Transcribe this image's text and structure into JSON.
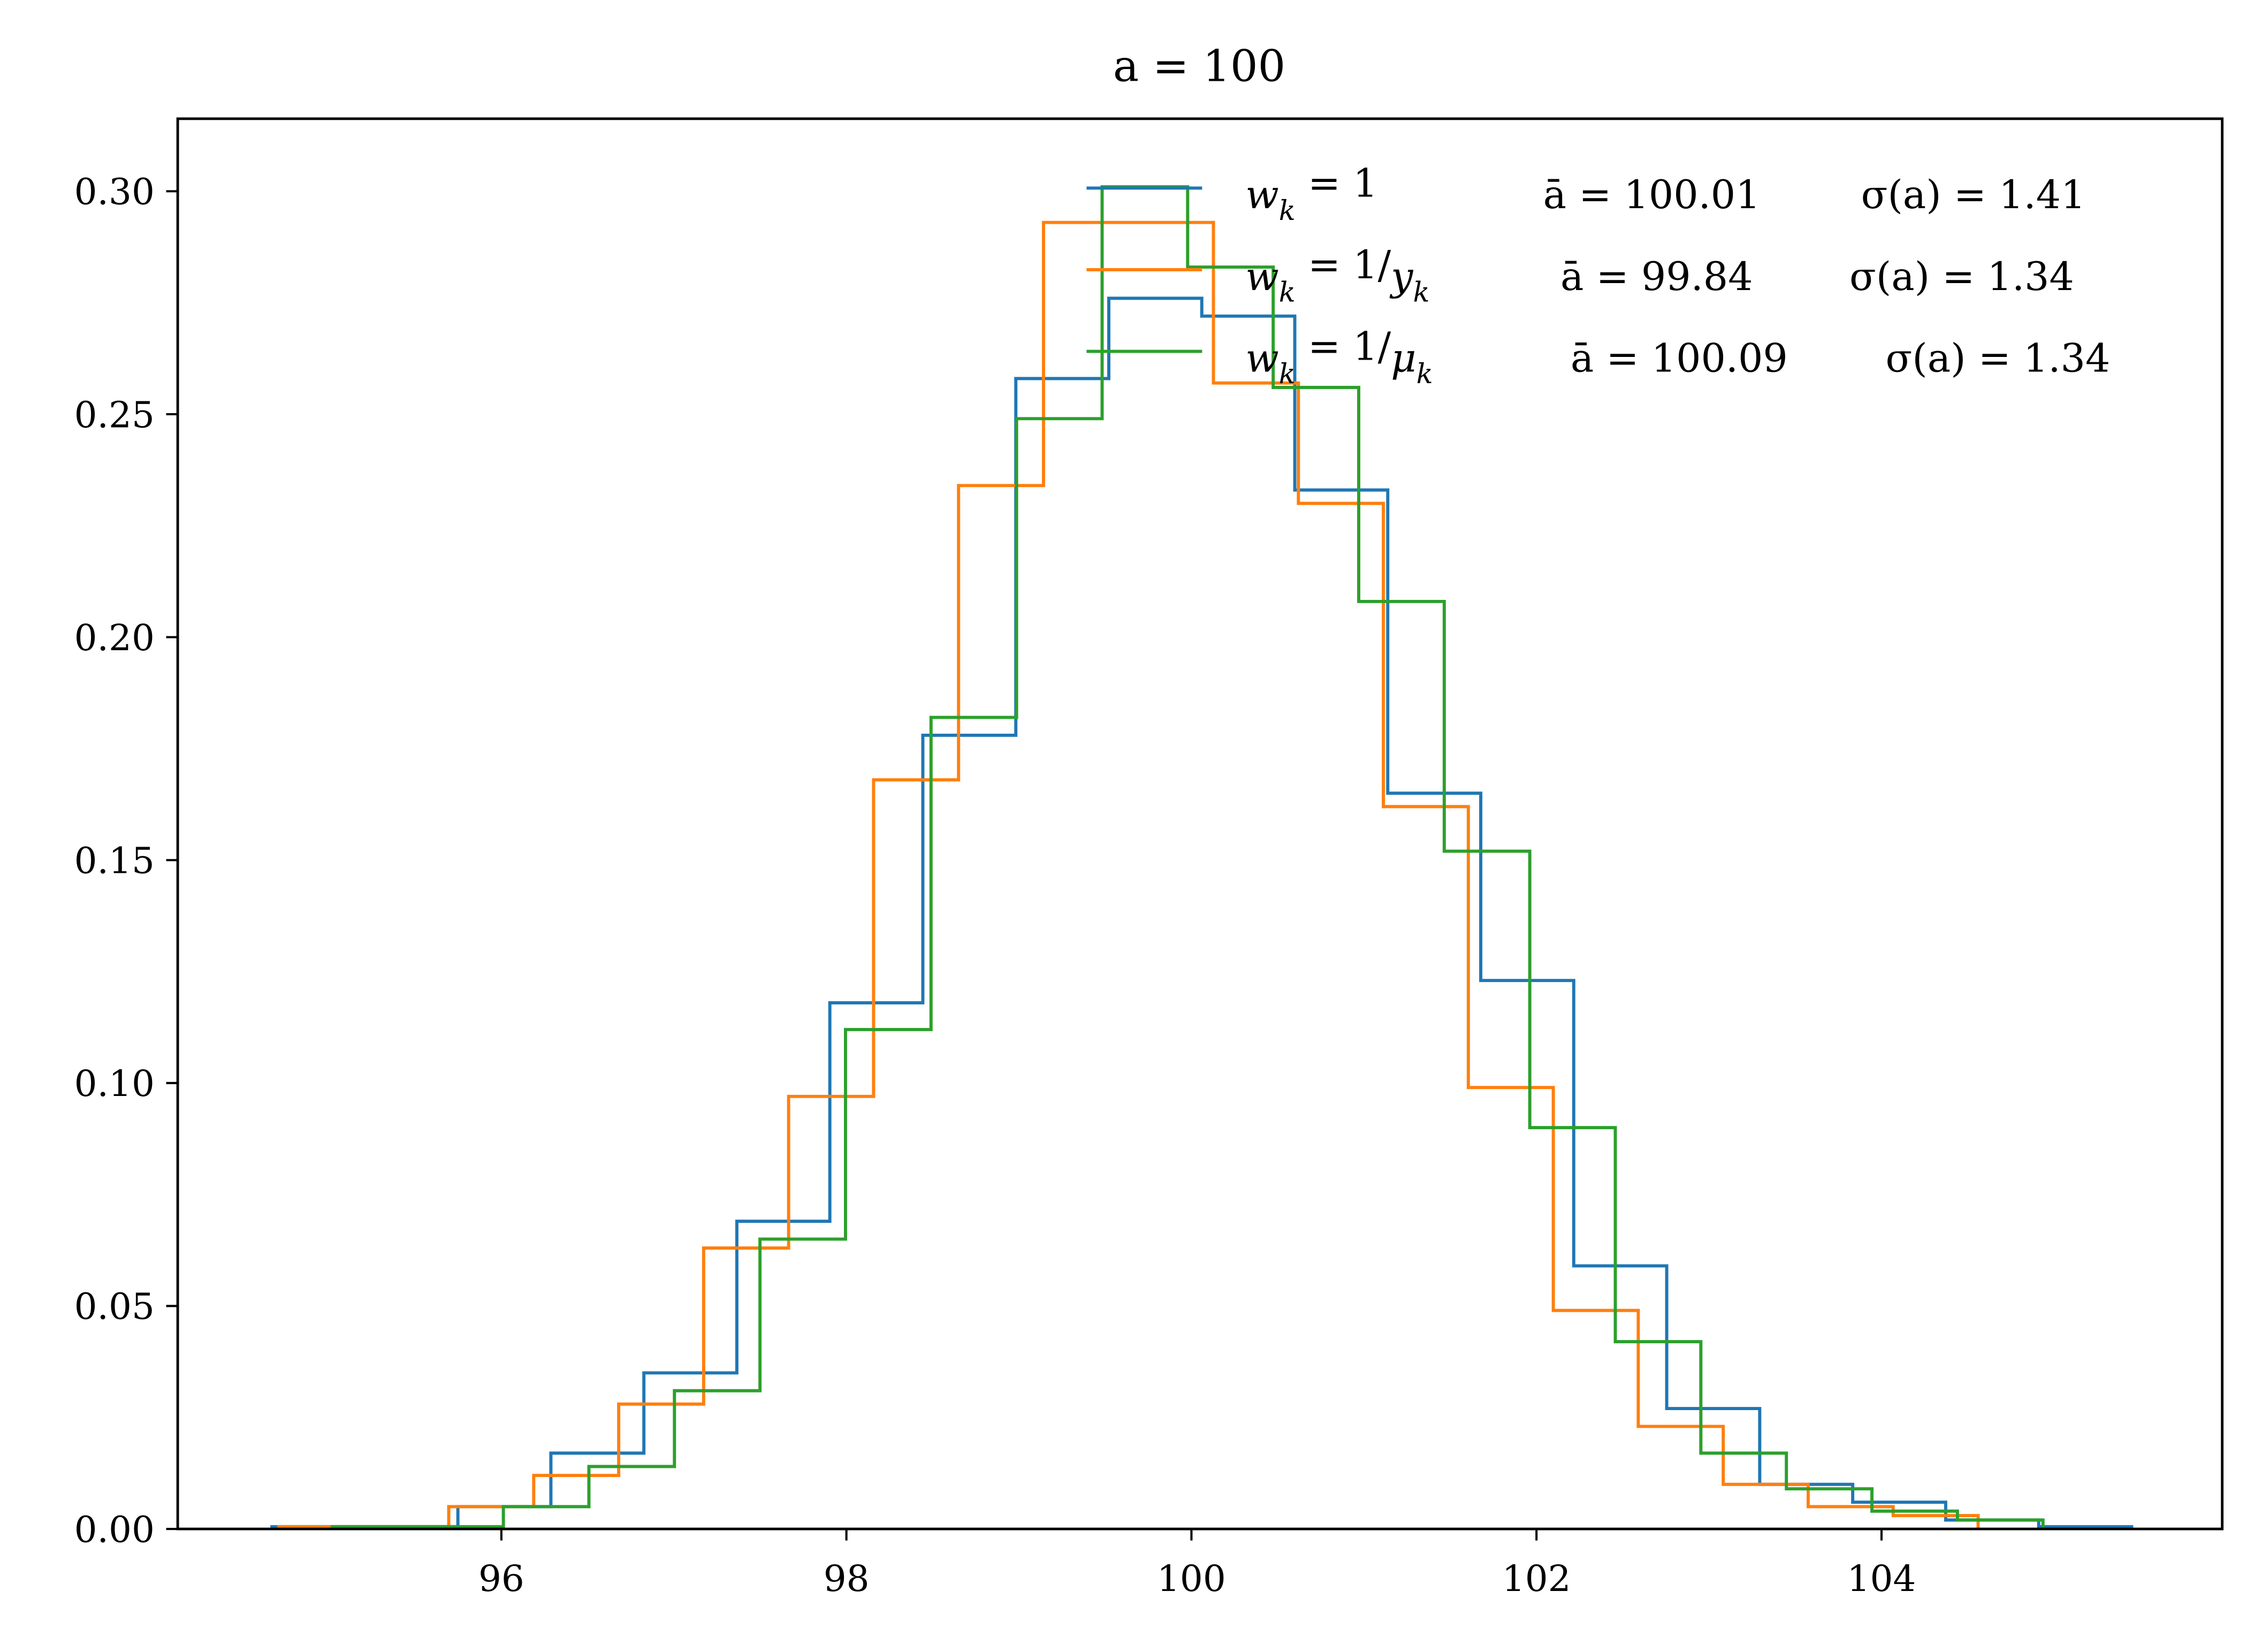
{
  "chart_data": {
    "type": "histogram-step",
    "title": "a = 100",
    "xlabel": "",
    "ylabel": "",
    "xlim": [
      94.2,
      105.9
    ],
    "ylim": [
      0,
      0.315
    ],
    "xticks": [
      "96",
      "98",
      "100",
      "102",
      "104"
    ],
    "xtick_values": [
      96,
      98,
      100,
      102,
      104
    ],
    "yticks": [
      "0.00",
      "0.05",
      "0.10",
      "0.15",
      "0.20",
      "0.25",
      "0.30"
    ],
    "ytick_values": [
      0,
      0.05,
      0.1,
      0.15,
      0.2,
      0.25,
      0.3
    ],
    "grid": false,
    "legend_position": "top-right",
    "series": [
      {
        "color": "#1f77b4",
        "legend": {
          "lhs": "w",
          "lhs_sub": "k",
          "rhs": " = 1",
          "rhs_var": "",
          "rhs_sub": "",
          "mean": "ā = 100.01",
          "sigma": "σ(a) = 1.41"
        },
        "bin_start": 94.67,
        "bin_width": 0.539,
        "values": [
          0.0005,
          0.0005,
          0.005,
          0.017,
          0.035,
          0.069,
          0.118,
          0.178,
          0.258,
          0.276,
          0.272,
          0.233,
          0.165,
          0.123,
          0.059,
          0.027,
          0.01,
          0.006,
          0.002,
          0.0005
        ]
      },
      {
        "color": "#ff7f0e",
        "legend": {
          "lhs": "w",
          "lhs_sub": "k",
          "rhs": " = 1/",
          "rhs_var": "y",
          "rhs_sub": "k",
          "mean": "ā = 99.84",
          "sigma": "σ(a) = 1.34"
        },
        "bin_start": 94.71,
        "bin_width": 0.4925,
        "values": [
          0.0005,
          0.0005,
          0.005,
          0.012,
          0.028,
          0.063,
          0.097,
          0.168,
          0.234,
          0.293,
          0.293,
          0.257,
          0.23,
          0.162,
          0.099,
          0.049,
          0.023,
          0.01,
          0.005,
          0.003
        ]
      },
      {
        "color": "#2ca02c",
        "legend": {
          "lhs": "w",
          "lhs_sub": "k",
          "rhs": " = 1/",
          "rhs_var": "μ",
          "rhs_sub": "k",
          "mean": "ā = 100.09",
          "sigma": "σ(a) = 1.34"
        },
        "bin_start": 95.02,
        "bin_width": 0.4958,
        "values": [
          0.0005,
          0.0005,
          0.005,
          0.014,
          0.031,
          0.065,
          0.112,
          0.182,
          0.249,
          0.301,
          0.283,
          0.256,
          0.208,
          0.152,
          0.09,
          0.042,
          0.017,
          0.009,
          0.004,
          0.002
        ]
      }
    ]
  }
}
